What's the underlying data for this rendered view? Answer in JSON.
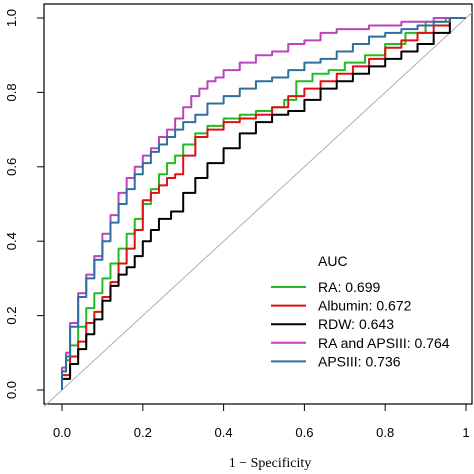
{
  "chart_data": {
    "type": "line",
    "xlabel": "1 − Specificity",
    "ylabel": "",
    "xlim": [
      0,
      1
    ],
    "ylim": [
      0,
      1
    ],
    "xticks": [
      "0.0",
      "0.2",
      "0.4",
      "0.6",
      "0.8",
      "1"
    ],
    "yticks": [
      "0.0",
      "0.2",
      "0.4",
      "0.6",
      "0.8",
      "1.0"
    ],
    "grid": false,
    "legend_title": "AUC",
    "legend_position": "bottom-right",
    "reference_line": {
      "x": [
        0,
        1
      ],
      "y": [
        0,
        1
      ],
      "color": "#b0b0b0"
    },
    "series": [
      {
        "name": "RA: 0.699",
        "color": "#22bb22",
        "x": [
          0.0,
          0.01,
          0.02,
          0.04,
          0.06,
          0.08,
          0.1,
          0.12,
          0.14,
          0.16,
          0.18,
          0.2,
          0.22,
          0.24,
          0.26,
          0.28,
          0.3,
          0.33,
          0.36,
          0.4,
          0.44,
          0.48,
          0.52,
          0.55,
          0.58,
          0.62,
          0.66,
          0.7,
          0.75,
          0.8,
          0.85,
          0.9,
          0.95,
          1.0
        ],
        "y": [
          0.0,
          0.05,
          0.08,
          0.12,
          0.17,
          0.22,
          0.26,
          0.3,
          0.34,
          0.38,
          0.42,
          0.46,
          0.5,
          0.54,
          0.58,
          0.61,
          0.63,
          0.66,
          0.69,
          0.71,
          0.73,
          0.74,
          0.75,
          0.76,
          0.78,
          0.83,
          0.85,
          0.86,
          0.88,
          0.9,
          0.93,
          0.96,
          0.99,
          1.0
        ]
      },
      {
        "name": "Albumin: 0.672",
        "color": "#dd1111",
        "x": [
          0.0,
          0.02,
          0.04,
          0.06,
          0.08,
          0.1,
          0.12,
          0.14,
          0.16,
          0.18,
          0.2,
          0.22,
          0.24,
          0.26,
          0.28,
          0.3,
          0.33,
          0.36,
          0.4,
          0.44,
          0.48,
          0.52,
          0.56,
          0.6,
          0.64,
          0.68,
          0.72,
          0.76,
          0.8,
          0.84,
          0.88,
          0.92,
          0.96,
          1.0
        ],
        "y": [
          0.0,
          0.04,
          0.09,
          0.13,
          0.18,
          0.21,
          0.25,
          0.29,
          0.34,
          0.38,
          0.43,
          0.51,
          0.53,
          0.55,
          0.57,
          0.58,
          0.63,
          0.68,
          0.7,
          0.72,
          0.73,
          0.74,
          0.76,
          0.79,
          0.81,
          0.83,
          0.85,
          0.87,
          0.89,
          0.92,
          0.94,
          0.96,
          0.98,
          1.0
        ]
      },
      {
        "name": "RDW: 0.643",
        "color": "#000000",
        "x": [
          0.0,
          0.02,
          0.04,
          0.06,
          0.08,
          0.1,
          0.12,
          0.14,
          0.16,
          0.18,
          0.2,
          0.22,
          0.24,
          0.27,
          0.3,
          0.33,
          0.36,
          0.4,
          0.44,
          0.48,
          0.52,
          0.56,
          0.6,
          0.64,
          0.68,
          0.72,
          0.76,
          0.8,
          0.84,
          0.88,
          0.92,
          0.96,
          1.0
        ],
        "y": [
          0.0,
          0.03,
          0.07,
          0.11,
          0.15,
          0.19,
          0.24,
          0.28,
          0.31,
          0.33,
          0.36,
          0.4,
          0.43,
          0.46,
          0.48,
          0.53,
          0.57,
          0.61,
          0.65,
          0.69,
          0.72,
          0.74,
          0.75,
          0.78,
          0.81,
          0.83,
          0.85,
          0.87,
          0.89,
          0.91,
          0.93,
          0.96,
          1.0
        ]
      },
      {
        "name": "RA and APSIII: 0.764",
        "color": "#bb44bb",
        "x": [
          0.0,
          0.01,
          0.02,
          0.04,
          0.06,
          0.08,
          0.1,
          0.12,
          0.14,
          0.16,
          0.18,
          0.2,
          0.22,
          0.24,
          0.26,
          0.28,
          0.3,
          0.32,
          0.34,
          0.36,
          0.38,
          0.4,
          0.44,
          0.48,
          0.52,
          0.56,
          0.6,
          0.64,
          0.68,
          0.72,
          0.76,
          0.8,
          0.84,
          0.88,
          0.92,
          0.96,
          1.0
        ],
        "y": [
          0.0,
          0.06,
          0.1,
          0.18,
          0.26,
          0.31,
          0.36,
          0.42,
          0.47,
          0.53,
          0.57,
          0.6,
          0.63,
          0.65,
          0.68,
          0.7,
          0.73,
          0.76,
          0.79,
          0.81,
          0.83,
          0.84,
          0.86,
          0.88,
          0.9,
          0.91,
          0.93,
          0.94,
          0.96,
          0.97,
          0.97,
          0.98,
          0.98,
          0.99,
          0.99,
          1.0,
          1.0
        ]
      },
      {
        "name": "APSIII: 0.736",
        "color": "#2f6f9f",
        "x": [
          0.0,
          0.01,
          0.02,
          0.04,
          0.06,
          0.08,
          0.1,
          0.12,
          0.14,
          0.16,
          0.18,
          0.2,
          0.22,
          0.24,
          0.26,
          0.28,
          0.3,
          0.33,
          0.36,
          0.4,
          0.44,
          0.48,
          0.52,
          0.56,
          0.6,
          0.64,
          0.68,
          0.72,
          0.76,
          0.8,
          0.84,
          0.88,
          0.92,
          0.96,
          1.0
        ],
        "y": [
          0.0,
          0.05,
          0.09,
          0.17,
          0.25,
          0.3,
          0.35,
          0.4,
          0.45,
          0.5,
          0.54,
          0.58,
          0.61,
          0.64,
          0.66,
          0.68,
          0.7,
          0.72,
          0.74,
          0.77,
          0.79,
          0.81,
          0.83,
          0.84,
          0.86,
          0.88,
          0.89,
          0.91,
          0.93,
          0.95,
          0.96,
          0.97,
          0.98,
          0.99,
          1.0
        ]
      }
    ]
  }
}
